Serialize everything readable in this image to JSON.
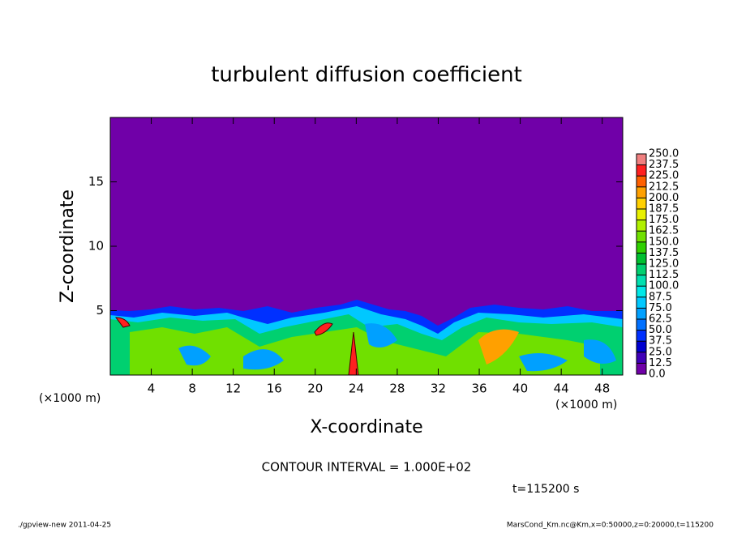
{
  "chart_data": {
    "type": "contour",
    "title": "turbulent diffusion coefficient",
    "xlabel": "X-coordinate",
    "ylabel": "Z-coordinate",
    "x_unit": "(×1000 m)",
    "xlim": [
      0,
      50
    ],
    "xticks": [
      4,
      8,
      12,
      16,
      20,
      24,
      28,
      32,
      36,
      40,
      44,
      48
    ],
    "ylim": [
      0,
      20
    ],
    "yticks": [
      5,
      10,
      15
    ],
    "colorbar": {
      "levels": [
        {
          "value": 0,
          "label": "0.0"
        },
        {
          "value": 12.5,
          "label": "12.5"
        },
        {
          "value": 25,
          "label": "25.0"
        },
        {
          "value": 37.5,
          "label": "37.5"
        },
        {
          "value": 50,
          "label": "50.0"
        },
        {
          "value": 62.5,
          "label": "62.5"
        },
        {
          "value": 75,
          "label": "75.0"
        },
        {
          "value": 87.5,
          "label": "87.5"
        },
        {
          "value": 100,
          "label": "100.0"
        },
        {
          "value": 112.5,
          "label": "112.5"
        },
        {
          "value": 125,
          "label": "125.0"
        },
        {
          "value": 137.5,
          "label": "137.5"
        },
        {
          "value": 150,
          "label": "150.0"
        },
        {
          "value": 162.5,
          "label": "162.5"
        },
        {
          "value": 175,
          "label": "175.0"
        },
        {
          "value": 187.5,
          "label": "187.5"
        },
        {
          "value": 200,
          "label": "200.0"
        },
        {
          "value": 212.5,
          "label": "212.5"
        },
        {
          "value": 225,
          "label": "225.0"
        },
        {
          "value": 237.5,
          "label": "237.5"
        },
        {
          "value": 250,
          "label": "250.0"
        }
      ],
      "colors": [
        "#7000a8",
        "#4000b8",
        "#0000d0",
        "#0030ff",
        "#0070ff",
        "#00a0ff",
        "#00c8ff",
        "#00e8e8",
        "#00e0b0",
        "#00d070",
        "#00c030",
        "#30d000",
        "#70e000",
        "#b0f000",
        "#e8f000",
        "#ffd000",
        "#ffa000",
        "#ff6000",
        "#ff2020",
        "#f08080"
      ]
    },
    "annotations": {
      "contour_interval": "CONTOUR INTERVAL = 1.000E+02",
      "time": "t=115200 s",
      "footer_left": "./gpview-new  2011-04-25",
      "footer_right": "MarsCond_Km.nc@Km,x=0:50000,z=0:20000,t=115200"
    }
  }
}
